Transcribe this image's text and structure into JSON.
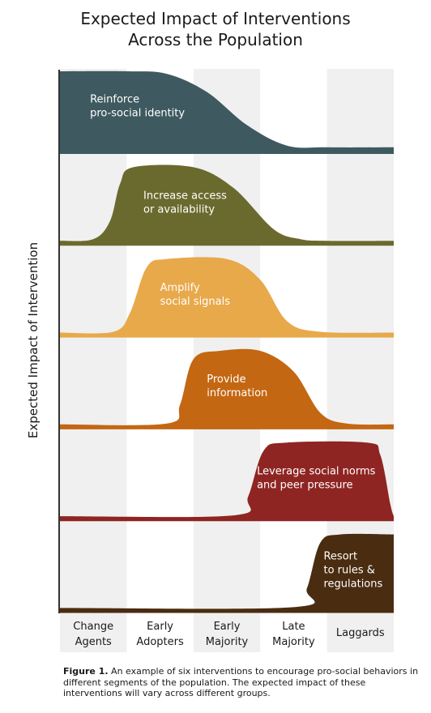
{
  "chart_data": {
    "type": "area",
    "title": [
      "Expected Impact of Interventions",
      "Across the Population"
    ],
    "ylabel": "Expected Impact of Intervention",
    "categories": [
      [
        "Change",
        "Agents"
      ],
      [
        "Early",
        "Adopters"
      ],
      [
        "Early",
        "Majority"
      ],
      [
        "Late",
        "Majority"
      ],
      [
        "Laggards"
      ]
    ],
    "grid": "alternating vertical bands",
    "series": [
      {
        "label": [
          "Reinforce",
          "pro-social identity"
        ],
        "color": "#3e5a60",
        "x": [
          0,
          1,
          1.6,
          2.2,
          2.8,
          3.4,
          4,
          5
        ],
        "y": [
          1,
          1,
          0.97,
          0.75,
          0.35,
          0.1,
          0.08,
          0.08
        ]
      },
      {
        "label": [
          "Increase access",
          "or availability"
        ],
        "color": "#6b6a2e",
        "x": [
          0,
          0.5,
          0.75,
          0.9,
          1.1,
          2,
          2.6,
          3.2,
          3.6,
          4,
          5
        ],
        "y": [
          0.06,
          0.08,
          0.3,
          0.75,
          0.95,
          0.95,
          0.7,
          0.2,
          0.08,
          0.06,
          0.06
        ]
      },
      {
        "label": [
          "Amplify",
          "social signals"
        ],
        "color": "#e8a94b",
        "x": [
          0,
          0.8,
          1.05,
          1.3,
          1.6,
          2.5,
          3,
          3.4,
          3.9,
          5
        ],
        "y": [
          0.06,
          0.07,
          0.3,
          0.85,
          0.95,
          0.95,
          0.7,
          0.2,
          0.07,
          0.06
        ]
      },
      {
        "label": [
          "Provide",
          "information"
        ],
        "color": "#c46712",
        "x": [
          0,
          1.6,
          1.8,
          2,
          2.4,
          3,
          3.5,
          3.9,
          4.3,
          5
        ],
        "y": [
          0.06,
          0.07,
          0.3,
          0.85,
          0.95,
          0.95,
          0.7,
          0.2,
          0.07,
          0.06
        ]
      },
      {
        "label": [
          "Leverage social norms",
          "and peer pressure"
        ],
        "color": "#8e2522",
        "x": [
          0,
          2.6,
          2.82,
          3.05,
          3.4,
          4.6,
          4.8,
          4.95,
          5
        ],
        "y": [
          0.06,
          0.07,
          0.3,
          0.85,
          0.95,
          0.95,
          0.8,
          0.2,
          0.06
        ]
      },
      {
        "label": [
          "Resort",
          "to rules &",
          "regulations"
        ],
        "color": "#4a2c10",
        "x": [
          0,
          3.5,
          3.7,
          3.9,
          4.2,
          5
        ],
        "y": [
          0.06,
          0.07,
          0.3,
          0.85,
          0.95,
          0.95
        ]
      }
    ]
  },
  "caption": {
    "bold": "Figure 1.",
    "text": " An example of six interventions to encourage pro-social behaviors in different segments of the population. The expected impact of these interventions will vary across different groups."
  }
}
